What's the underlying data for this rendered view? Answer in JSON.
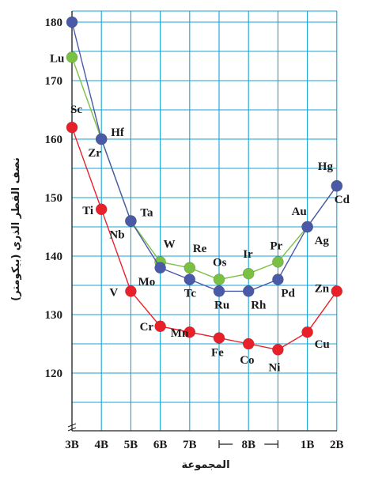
{
  "chart_data": {
    "type": "line",
    "title": "",
    "xlabel": "المجموعة",
    "ylabel": "نصف القطر الذري (بيكومتر)",
    "ylim": [
      110,
      180
    ],
    "yticks": [
      120,
      130,
      140,
      150,
      160,
      170,
      180
    ],
    "categories": [
      "3B",
      "4B",
      "5B",
      "6B",
      "7B",
      "8B",
      "8B",
      "8B",
      "1B",
      "2B"
    ],
    "tick_labels": [
      "3B",
      "4B",
      "5B",
      "6B",
      "7B",
      "8B",
      "1B",
      "2B"
    ],
    "group_8B_span": [
      5,
      7
    ],
    "axis_break": "≁",
    "grid": true,
    "series": [
      {
        "color": "#e8202a",
        "points": [
          {
            "x": 0,
            "y": 162,
            "label": "Sc"
          },
          {
            "x": 1,
            "y": 148,
            "label": "Ti"
          },
          {
            "x": 2,
            "y": 134,
            "label": "V"
          },
          {
            "x": 3,
            "y": 128,
            "label": "Cr"
          },
          {
            "x": 4,
            "y": 127,
            "label": "Mn"
          },
          {
            "x": 5,
            "y": 126,
            "label": "Fe"
          },
          {
            "x": 6,
            "y": 125,
            "label": "Co"
          },
          {
            "x": 7,
            "y": 124,
            "label": "Ni"
          },
          {
            "x": 8,
            "y": 127,
            "label": "Cu"
          },
          {
            "x": 9,
            "y": 134,
            "label": "Zn"
          }
        ]
      },
      {
        "color": "#7ac143",
        "points": [
          {
            "x": 0,
            "y": 174,
            "label": "Lu"
          },
          {
            "x": 1,
            "y": 160,
            "label": "Hf"
          },
          {
            "x": 2,
            "y": 146,
            "label": "Ta"
          },
          {
            "x": 3,
            "y": 139,
            "label": "W"
          },
          {
            "x": 4,
            "y": 138,
            "label": "Re"
          },
          {
            "x": 5,
            "y": 136,
            "label": "Os"
          },
          {
            "x": 6,
            "y": 137,
            "label": "Ir"
          },
          {
            "x": 7,
            "y": 139,
            "label": "Pr"
          },
          {
            "x": 8,
            "y": 145,
            "label": "Au"
          },
          {
            "x": 9,
            "y": 152,
            "label": "Hg"
          }
        ]
      },
      {
        "color": "#4a5aa8",
        "points": [
          {
            "x": 0,
            "y": 180,
            "label": ""
          },
          {
            "x": 1,
            "y": 160,
            "label": "Zr"
          },
          {
            "x": 2,
            "y": 146,
            "label": "Nb"
          },
          {
            "x": 3,
            "y": 138,
            "label": "Mo"
          },
          {
            "x": 4,
            "y": 136,
            "label": "Tc"
          },
          {
            "x": 5,
            "y": 134,
            "label": "Ru"
          },
          {
            "x": 6,
            "y": 134,
            "label": "Rh"
          },
          {
            "x": 7,
            "y": 136,
            "label": "Pd"
          },
          {
            "x": 8,
            "y": 145,
            "label": "Ag"
          },
          {
            "x": 9,
            "y": 152,
            "label": "Cd"
          }
        ]
      }
    ]
  }
}
